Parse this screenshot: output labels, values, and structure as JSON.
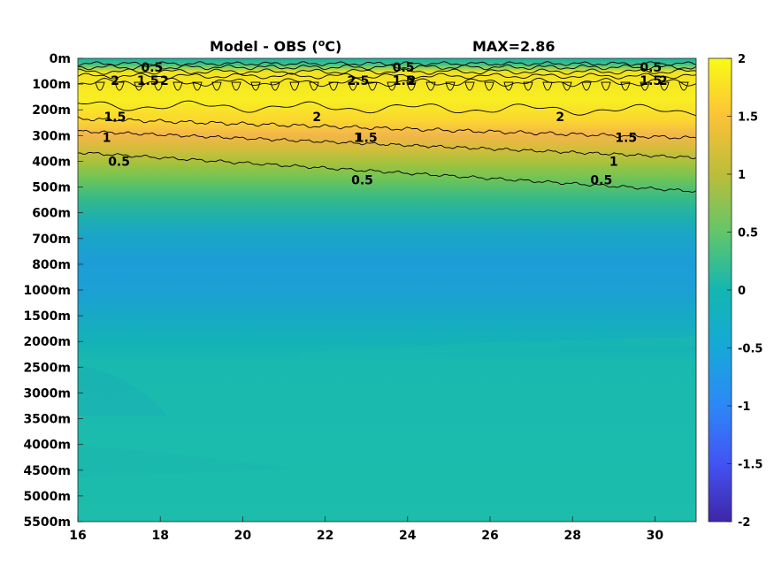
{
  "chart_data": {
    "type": "heatmap",
    "title_main": "Model - OBS (",
    "title_sup": "o",
    "title_unit": "C)",
    "title_max": "MAX=2.86",
    "xlabel": "",
    "ylabel": "",
    "x_ticks": [
      "16",
      "18",
      "20",
      "22",
      "24",
      "26",
      "28",
      "30"
    ],
    "x_tick_values": [
      16,
      18,
      20,
      22,
      24,
      26,
      28,
      30
    ],
    "xlim": [
      16,
      31
    ],
    "y_ticks": [
      "0m",
      "100m",
      "200m",
      "300m",
      "400m",
      "500m",
      "600m",
      "700m",
      "800m",
      "1000m",
      "1500m",
      "2000m",
      "2500m",
      "3000m",
      "3500m",
      "4000m",
      "4500m",
      "5000m",
      "5500m"
    ],
    "colorbar": {
      "ticks": [
        "2",
        "1.5",
        "1",
        "0.5",
        "0",
        "-0.5",
        "-1",
        "-1.5",
        "-2"
      ],
      "tick_values": [
        2,
        1.5,
        1,
        0.5,
        0,
        -0.5,
        -1,
        -1.5,
        -2
      ],
      "range": [
        -2,
        2
      ],
      "colormap": "parula"
    },
    "contour_levels": [
      0.5,
      1,
      1.5,
      2,
      2.5
    ],
    "contour_labels": [
      {
        "text": "0.5",
        "x": 17.8,
        "depth": "0m"
      },
      {
        "text": "1.5",
        "x": 17.7,
        "depth": "100m"
      },
      {
        "text": "2",
        "x": 18.1,
        "depth": "100m"
      },
      {
        "text": "2",
        "x": 16.9,
        "depth": "100m"
      },
      {
        "text": "1.5",
        "x": 16.9,
        "depth": "200m"
      },
      {
        "text": "1",
        "x": 16.7,
        "depth": "300m"
      },
      {
        "text": "0.5",
        "x": 17.0,
        "depth": "400m"
      },
      {
        "text": "0.5",
        "x": 23.9,
        "depth": "0m"
      },
      {
        "text": "1.5",
        "x": 23.9,
        "depth": "100m"
      },
      {
        "text": "2",
        "x": 24.1,
        "depth": "100m"
      },
      {
        "text": "2.5",
        "x": 22.8,
        "depth": "100m"
      },
      {
        "text": "2",
        "x": 21.8,
        "depth": "200m"
      },
      {
        "text": "1.5",
        "x": 23.0,
        "depth": "300m"
      },
      {
        "text": "1",
        "x": 22.8,
        "depth": "300m"
      },
      {
        "text": "0.5",
        "x": 22.9,
        "depth": "500m"
      },
      {
        "text": "2",
        "x": 27.7,
        "depth": "200m"
      },
      {
        "text": "1.5",
        "x": 29.3,
        "depth": "300m"
      },
      {
        "text": "1",
        "x": 29.0,
        "depth": "400m"
      },
      {
        "text": "0.5",
        "x": 28.7,
        "depth": "500m"
      },
      {
        "text": "0.5",
        "x": 29.9,
        "depth": "0m"
      },
      {
        "text": "1.5",
        "x": 29.9,
        "depth": "100m"
      },
      {
        "text": "2",
        "x": 30.2,
        "depth": "100m"
      }
    ],
    "profile_by_depth": [
      {
        "depth": "0m",
        "value": 0.2
      },
      {
        "depth": "100m",
        "value": 2.1
      },
      {
        "depth": "200m",
        "value": 2.0
      },
      {
        "depth": "300m",
        "value": 1.4
      },
      {
        "depth": "400m",
        "value": 0.8
      },
      {
        "depth": "500m",
        "value": 0.3
      },
      {
        "depth": "600m",
        "value": 0.0
      },
      {
        "depth": "700m",
        "value": -0.2
      },
      {
        "depth": "800m",
        "value": -0.2
      },
      {
        "depth": "1000m",
        "value": -0.1
      },
      {
        "depth": "1500m",
        "value": 0.0
      },
      {
        "depth": "2000m",
        "value": 0.1
      },
      {
        "depth": "2500m",
        "value": 0.15
      },
      {
        "depth": "3000m",
        "value": 0.15
      },
      {
        "depth": "3500m",
        "value": 0.15
      },
      {
        "depth": "4000m",
        "value": 0.15
      },
      {
        "depth": "4500m",
        "value": 0.15
      },
      {
        "depth": "5000m",
        "value": 0.15
      },
      {
        "depth": "5500m",
        "value": 0.15
      }
    ]
  }
}
